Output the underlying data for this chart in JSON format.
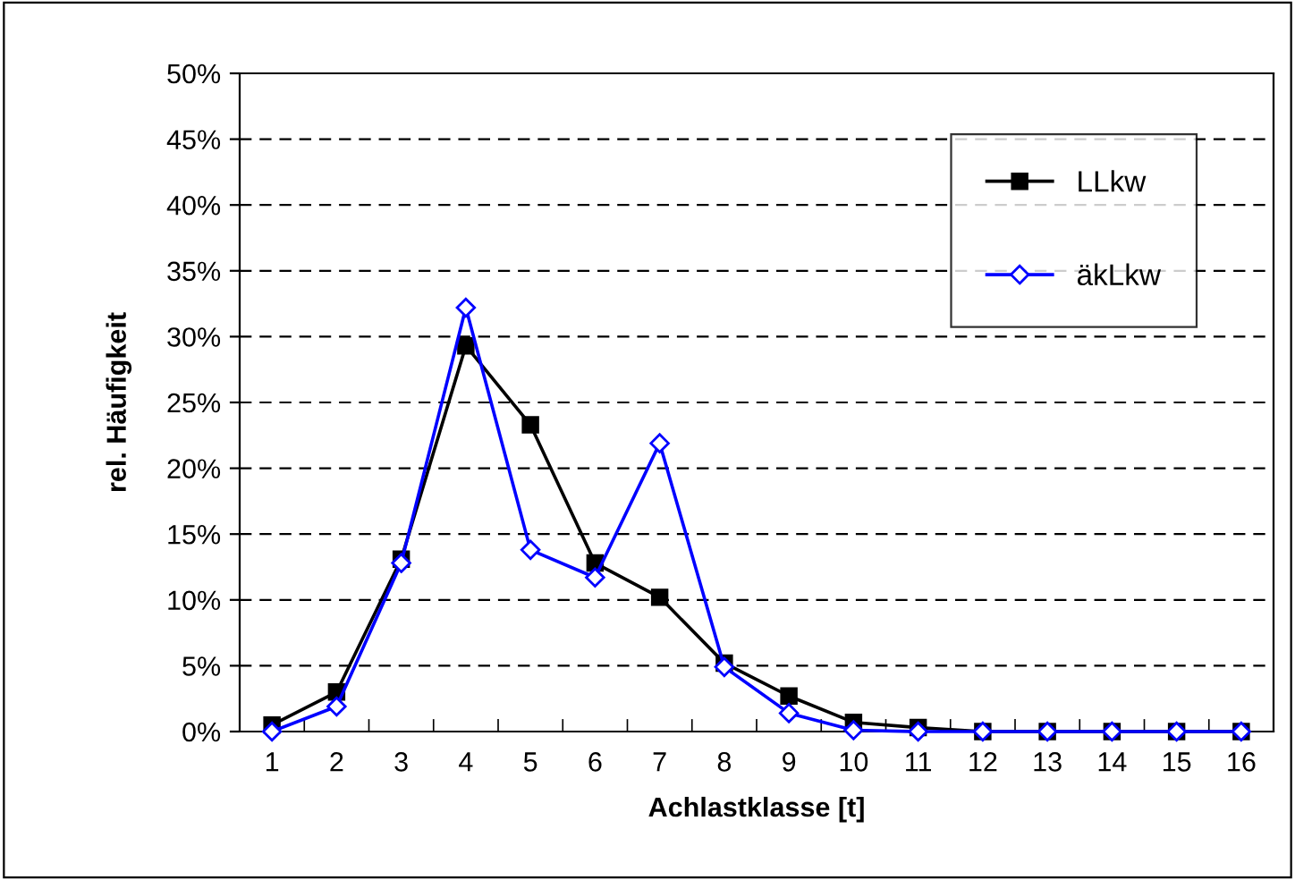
{
  "chart_data": {
    "type": "line",
    "xlabel": "Achlastklasse [t]",
    "ylabel": "rel. Häufigkeit",
    "categories": [
      "1",
      "2",
      "3",
      "4",
      "5",
      "6",
      "7",
      "8",
      "9",
      "10",
      "11",
      "12",
      "13",
      "14",
      "15",
      "16"
    ],
    "series": [
      {
        "name": "LLkw",
        "color": "#000000",
        "marker": "square",
        "values": [
          0.5,
          3.0,
          13.1,
          29.3,
          23.3,
          12.8,
          10.2,
          5.2,
          2.7,
          0.7,
          0.3,
          0,
          0,
          0,
          0,
          0
        ]
      },
      {
        "name": "äkLkw",
        "color": "#0000ff",
        "marker": "diamond",
        "values": [
          0,
          1.9,
          12.8,
          32.2,
          13.8,
          11.7,
          21.9,
          4.9,
          1.4,
          0.1,
          0,
          0,
          0,
          0,
          0,
          0
        ]
      }
    ],
    "ylim": [
      0,
      50
    ],
    "yticks": [
      {
        "value": 0,
        "label": "0%"
      },
      {
        "value": 5,
        "label": "5%"
      },
      {
        "value": 10,
        "label": "10%"
      },
      {
        "value": 15,
        "label": "15%"
      },
      {
        "value": 20,
        "label": "20%"
      },
      {
        "value": 25,
        "label": "25%"
      },
      {
        "value": 30,
        "label": "30%"
      },
      {
        "value": 35,
        "label": "35%"
      },
      {
        "value": 40,
        "label": "40%"
      },
      {
        "value": 45,
        "label": "45%"
      },
      {
        "value": 50,
        "label": "50%"
      }
    ],
    "grid": "y",
    "legend": "top right",
    "line_style": "solid"
  }
}
